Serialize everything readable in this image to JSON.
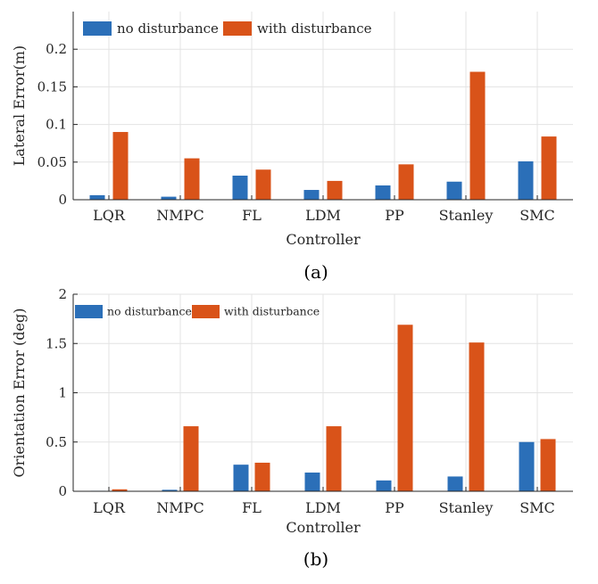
{
  "colors": {
    "series_no": "#2b6fb8",
    "series_with": "#d95319",
    "grid": "#e3e3e3",
    "axis": "#262626"
  },
  "chart_data": [
    {
      "type": "bar",
      "caption": "(a)",
      "xlabel": "Controller",
      "ylabel": "Lateral Error(m)",
      "categories": [
        "LQR",
        "NMPC",
        "FL",
        "LDM",
        "PP",
        "Stanley",
        "SMC"
      ],
      "ylim": [
        0,
        0.25
      ],
      "yticks": [
        0,
        0.05,
        0.1,
        0.15,
        0.2
      ],
      "ytick_labels": [
        "0",
        "0.05",
        "0.1",
        "0.15",
        "0.2"
      ],
      "grid": true,
      "legend_position": "top-left",
      "series": [
        {
          "name": "no disturbance",
          "values": [
            0.006,
            0.004,
            0.032,
            0.013,
            0.019,
            0.024,
            0.051
          ]
        },
        {
          "name": "with disturbance",
          "values": [
            0.09,
            0.055,
            0.04,
            0.025,
            0.047,
            0.17,
            0.084
          ]
        }
      ]
    },
    {
      "type": "bar",
      "caption": "(b)",
      "xlabel": "Controller",
      "ylabel": "Orientation Error (deg)",
      "categories": [
        "LQR",
        "NMPC",
        "FL",
        "LDM",
        "PP",
        "Stanley",
        "SMC"
      ],
      "ylim": [
        0,
        2
      ],
      "yticks": [
        0,
        0.5,
        1,
        1.5,
        2
      ],
      "ytick_labels": [
        "0",
        "0.5",
        "1",
        "1.5",
        "2"
      ],
      "grid": true,
      "legend_position": "top-left",
      "series": [
        {
          "name": "no disturbance",
          "values": [
            0.005,
            0.015,
            0.27,
            0.19,
            0.11,
            0.15,
            0.5
          ]
        },
        {
          "name": "with disturbance",
          "values": [
            0.02,
            0.66,
            0.29,
            0.66,
            1.69,
            1.51,
            0.53
          ]
        }
      ]
    }
  ]
}
